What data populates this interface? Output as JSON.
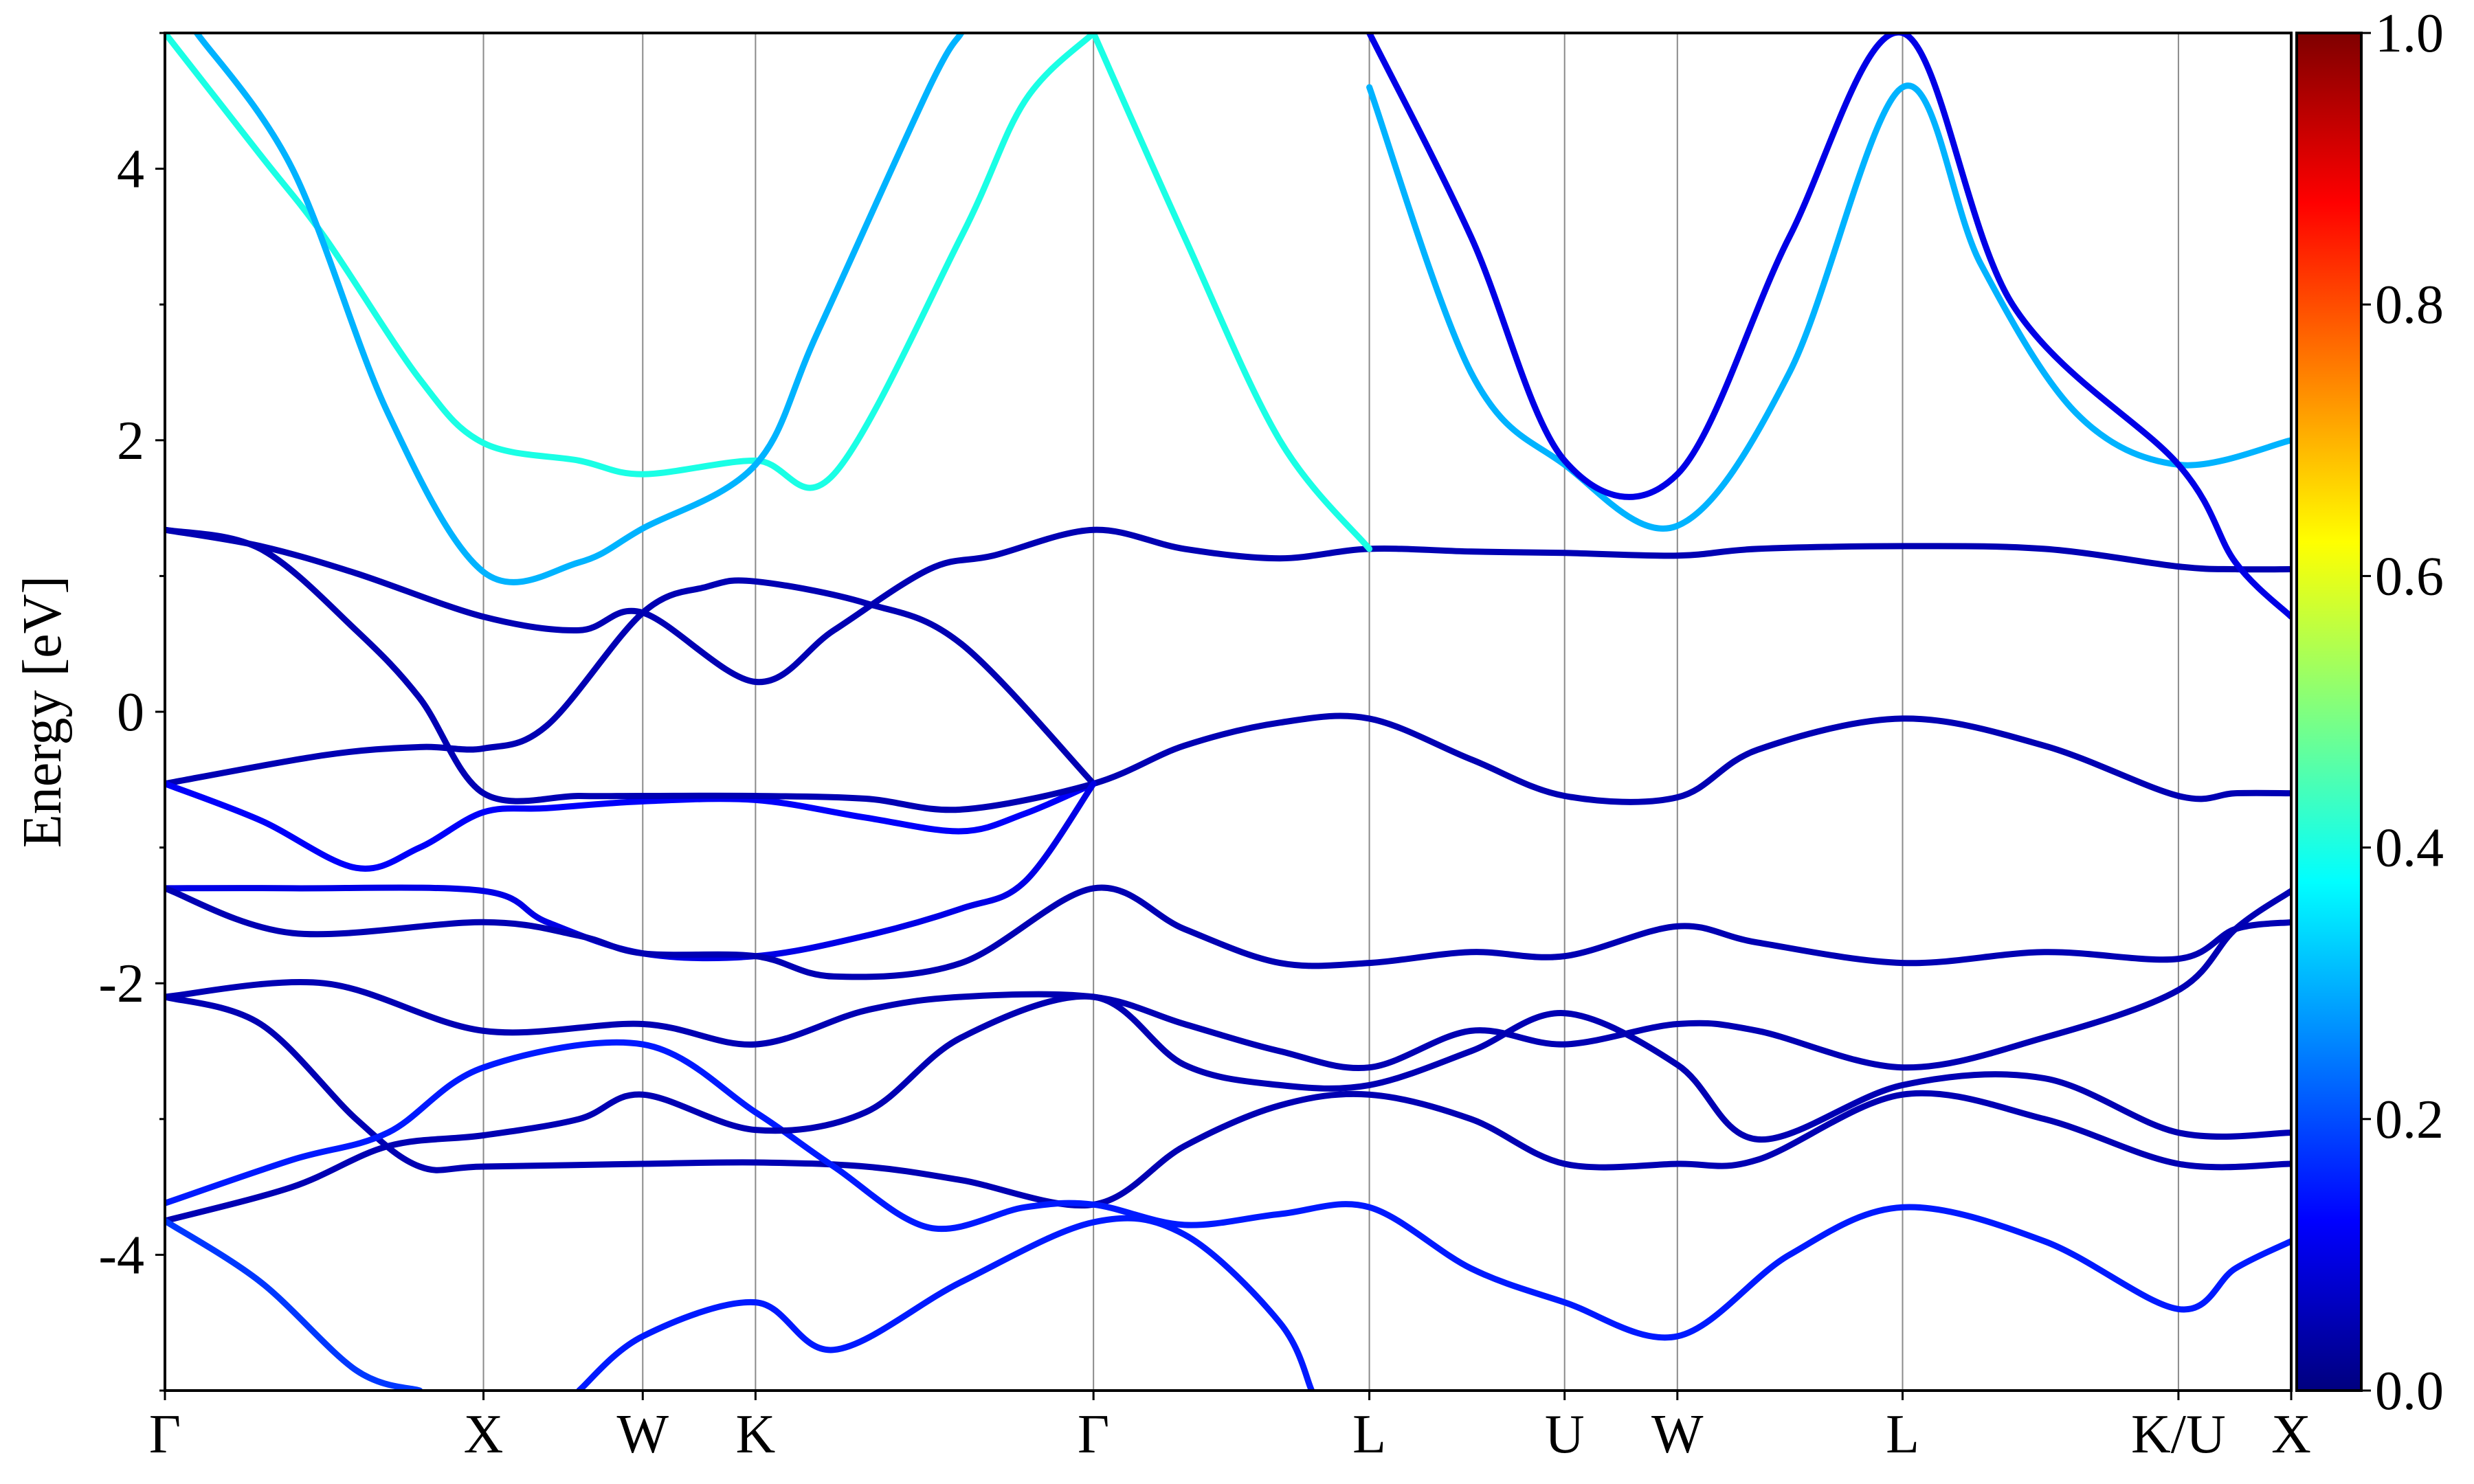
{
  "chart_data": {
    "type": "line",
    "ylabel": "Energy [eV]",
    "ylim": [
      -5,
      5
    ],
    "yticks": [
      -4,
      -2,
      0,
      2,
      4
    ],
    "grid": "vertical lines at high-symmetry points",
    "colormap": "jet",
    "colorbar": {
      "min": 0.0,
      "max": 1.0,
      "ticks": [
        "0.0",
        "0.2",
        "0.4",
        "0.6",
        "0.8",
        "1.0"
      ]
    },
    "kpath": [
      {
        "label": "Γ",
        "k": 0.0
      },
      {
        "label": "X",
        "k": 1.0
      },
      {
        "label": "W",
        "k": 1.5
      },
      {
        "label": "K",
        "k": 1.854
      },
      {
        "label": "Γ",
        "k": 2.915
      },
      {
        "label": "L",
        "k": 3.781
      },
      {
        "label": "U",
        "k": 4.394
      },
      {
        "label": "W",
        "k": 4.748
      },
      {
        "label": "L",
        "k": 5.455
      },
      {
        "label": "K/U",
        "k": 6.321
      },
      {
        "label": "X",
        "k": 6.675
      }
    ],
    "series": [
      {
        "weight": 0.05,
        "points": [
          [
            0,
            -0.53
          ],
          [
            0.5,
            -0.32
          ],
          [
            0.8,
            -0.26
          ],
          [
            1.0,
            -0.27
          ],
          [
            1.2,
            -0.1
          ],
          [
            1.5,
            0.73
          ],
          [
            1.7,
            0.92
          ],
          [
            1.854,
            0.96
          ],
          [
            2.2,
            0.8
          ],
          [
            2.5,
            0.5
          ],
          [
            2.915,
            -0.53
          ]
        ]
      },
      {
        "weight": 0.12,
        "points": [
          [
            0,
            -0.53
          ],
          [
            0.3,
            -0.8
          ],
          [
            0.6,
            -1.15
          ],
          [
            0.8,
            -1.0
          ],
          [
            1.0,
            -0.74
          ],
          [
            1.2,
            -0.71
          ],
          [
            1.5,
            -0.66
          ],
          [
            1.854,
            -0.65
          ],
          [
            2.2,
            -0.78
          ],
          [
            2.5,
            -0.88
          ],
          [
            2.7,
            -0.75
          ],
          [
            2.915,
            -0.53
          ]
        ]
      },
      {
        "weight": 0.05,
        "points": [
          [
            0,
            1.34
          ],
          [
            0.3,
            1.22
          ],
          [
            0.6,
            1.02
          ],
          [
            1.0,
            0.7
          ],
          [
            1.3,
            0.6
          ],
          [
            1.5,
            0.73
          ],
          [
            1.854,
            0.22
          ],
          [
            2.1,
            0.6
          ],
          [
            2.4,
            1.05
          ],
          [
            2.6,
            1.15
          ],
          [
            2.915,
            1.34
          ],
          [
            3.2,
            1.2
          ],
          [
            3.5,
            1.13
          ],
          [
            3.781,
            1.2
          ],
          [
            4.1,
            1.18
          ],
          [
            4.394,
            1.17
          ],
          [
            4.748,
            1.15
          ],
          [
            5.0,
            1.2
          ],
          [
            5.455,
            1.22
          ],
          [
            5.9,
            1.2
          ],
          [
            6.321,
            1.07
          ],
          [
            6.5,
            1.05
          ],
          [
            6.675,
            1.05
          ]
        ]
      },
      {
        "weight": 0.05,
        "points": [
          [
            0,
            1.34
          ],
          [
            0.3,
            1.2
          ],
          [
            0.6,
            0.6
          ],
          [
            0.8,
            0.1
          ],
          [
            1.0,
            -0.6
          ],
          [
            1.3,
            -0.62
          ],
          [
            1.5,
            -0.62
          ],
          [
            1.854,
            -0.62
          ],
          [
            2.2,
            -0.64
          ],
          [
            2.5,
            -0.72
          ],
          [
            2.915,
            -0.53
          ],
          [
            3.2,
            -0.25
          ],
          [
            3.5,
            -0.08
          ],
          [
            3.781,
            -0.05
          ],
          [
            4.1,
            -0.35
          ],
          [
            4.394,
            -0.62
          ],
          [
            4.748,
            -0.63
          ],
          [
            5.0,
            -0.28
          ],
          [
            5.455,
            -0.05
          ],
          [
            5.9,
            -0.25
          ],
          [
            6.321,
            -0.62
          ],
          [
            6.5,
            -0.6
          ],
          [
            6.675,
            -0.6
          ]
        ]
      },
      {
        "weight": 0.1,
        "points": [
          [
            0,
            -1.3
          ],
          [
            0.4,
            -1.3
          ],
          [
            1.0,
            -1.32
          ],
          [
            1.2,
            -1.55
          ],
          [
            1.5,
            -1.78
          ],
          [
            1.854,
            -1.8
          ],
          [
            2.2,
            -1.65
          ],
          [
            2.5,
            -1.45
          ],
          [
            2.7,
            -1.25
          ],
          [
            2.915,
            -0.53
          ]
        ]
      },
      {
        "weight": 0.05,
        "points": [
          [
            0,
            -1.3
          ],
          [
            0.4,
            -1.63
          ],
          [
            1.0,
            -1.55
          ],
          [
            1.3,
            -1.65
          ],
          [
            1.5,
            -1.78
          ],
          [
            1.854,
            -1.8
          ],
          [
            2.1,
            -1.95
          ],
          [
            2.5,
            -1.85
          ],
          [
            2.915,
            -1.3
          ],
          [
            3.2,
            -1.6
          ],
          [
            3.5,
            -1.85
          ],
          [
            3.781,
            -1.85
          ],
          [
            4.1,
            -1.77
          ],
          [
            4.394,
            -1.8
          ],
          [
            4.748,
            -1.58
          ],
          [
            5.0,
            -1.7
          ],
          [
            5.455,
            -1.85
          ],
          [
            5.9,
            -1.77
          ],
          [
            6.321,
            -1.82
          ],
          [
            6.5,
            -1.6
          ],
          [
            6.675,
            -1.55
          ]
        ]
      },
      {
        "weight": 0.05,
        "points": [
          [
            0,
            -2.1
          ],
          [
            0.5,
            -2.0
          ],
          [
            1.0,
            -2.35
          ],
          [
            1.5,
            -2.3
          ],
          [
            1.854,
            -2.45
          ],
          [
            2.2,
            -2.2
          ],
          [
            2.5,
            -2.1
          ],
          [
            2.915,
            -2.1
          ],
          [
            3.2,
            -2.3
          ],
          [
            3.5,
            -2.5
          ],
          [
            3.781,
            -2.62
          ],
          [
            4.1,
            -2.35
          ],
          [
            4.394,
            -2.45
          ],
          [
            4.748,
            -2.3
          ],
          [
            5.0,
            -2.35
          ],
          [
            5.455,
            -2.62
          ],
          [
            5.9,
            -2.4
          ],
          [
            6.321,
            -2.05
          ],
          [
            6.5,
            -1.6
          ],
          [
            6.675,
            -1.32
          ]
        ]
      },
      {
        "weight": 0.05,
        "points": [
          [
            0,
            -2.1
          ],
          [
            0.3,
            -2.3
          ],
          [
            0.6,
            -3.0
          ],
          [
            0.8,
            -3.35
          ],
          [
            1.0,
            -3.35
          ],
          [
            1.5,
            -3.33
          ],
          [
            1.854,
            -3.32
          ],
          [
            2.2,
            -3.35
          ],
          [
            2.5,
            -3.45
          ],
          [
            2.915,
            -3.63
          ],
          [
            3.2,
            -3.2
          ],
          [
            3.5,
            -2.9
          ],
          [
            3.781,
            -2.82
          ],
          [
            4.1,
            -3.0
          ],
          [
            4.394,
            -3.33
          ],
          [
            4.748,
            -3.33
          ],
          [
            5.0,
            -3.3
          ],
          [
            5.455,
            -2.82
          ],
          [
            5.9,
            -3.0
          ],
          [
            6.321,
            -3.33
          ],
          [
            6.675,
            -3.33
          ]
        ]
      },
      {
        "weight": 0.15,
        "points": [
          [
            0,
            -3.62
          ],
          [
            0.4,
            -3.3
          ],
          [
            0.7,
            -3.1
          ],
          [
            1.0,
            -2.62
          ],
          [
            1.5,
            -2.45
          ],
          [
            1.854,
            -2.95
          ],
          [
            2.1,
            -3.35
          ],
          [
            2.4,
            -3.8
          ],
          [
            2.7,
            -3.65
          ],
          [
            2.915,
            -3.63
          ],
          [
            3.2,
            -3.78
          ],
          [
            3.5,
            -3.7
          ],
          [
            3.781,
            -3.65
          ],
          [
            4.1,
            -4.1
          ],
          [
            4.394,
            -4.35
          ],
          [
            4.748,
            -4.6
          ],
          [
            5.1,
            -4.0
          ],
          [
            5.455,
            -3.65
          ],
          [
            5.9,
            -3.9
          ],
          [
            6.321,
            -4.4
          ],
          [
            6.5,
            -4.1
          ],
          [
            6.675,
            -3.9
          ]
        ]
      },
      {
        "weight": 0.05,
        "points": [
          [
            0,
            -3.75
          ],
          [
            0.4,
            -3.5
          ],
          [
            0.7,
            -3.2
          ],
          [
            1.0,
            -3.12
          ],
          [
            1.3,
            -3.0
          ],
          [
            1.5,
            -2.82
          ],
          [
            1.854,
            -3.08
          ],
          [
            2.2,
            -2.95
          ],
          [
            2.5,
            -2.4
          ],
          [
            2.915,
            -2.1
          ],
          [
            3.2,
            -2.6
          ],
          [
            3.5,
            -2.75
          ],
          [
            3.781,
            -2.75
          ],
          [
            4.1,
            -2.5
          ],
          [
            4.394,
            -2.22
          ],
          [
            4.748,
            -2.6
          ],
          [
            5.0,
            -3.15
          ],
          [
            5.455,
            -2.75
          ],
          [
            5.9,
            -2.7
          ],
          [
            6.321,
            -3.1
          ],
          [
            6.675,
            -3.1
          ]
        ]
      },
      {
        "weight": 0.18,
        "points": [
          [
            0,
            -3.75
          ],
          [
            0.3,
            -4.2
          ],
          [
            0.6,
            -4.85
          ],
          [
            0.8,
            -5.0
          ]
        ]
      },
      {
        "weight": 0.15,
        "points": [
          [
            1.3,
            -5.0
          ],
          [
            1.5,
            -4.6
          ],
          [
            1.854,
            -4.35
          ],
          [
            2.1,
            -4.7
          ],
          [
            2.5,
            -4.2
          ],
          [
            2.915,
            -3.76
          ],
          [
            3.2,
            -3.85
          ],
          [
            3.5,
            -4.5
          ],
          [
            3.6,
            -5.0
          ]
        ]
      },
      {
        "weight": 0.4,
        "points": [
          [
            0.0,
            5.0
          ],
          [
            0.3,
            4.1
          ],
          [
            0.5,
            3.5
          ],
          [
            0.8,
            2.45
          ],
          [
            1.0,
            1.98
          ],
          [
            1.3,
            1.85
          ],
          [
            1.5,
            1.75
          ],
          [
            1.854,
            1.85
          ],
          [
            2.1,
            1.75
          ],
          [
            2.5,
            3.5
          ],
          [
            2.7,
            4.5
          ],
          [
            2.915,
            5.0
          ]
        ]
      },
      {
        "weight": 0.3,
        "points": [
          [
            0.1,
            5.0
          ],
          [
            0.4,
            4.0
          ],
          [
            0.7,
            2.2
          ],
          [
            1.0,
            1.03
          ],
          [
            1.3,
            1.1
          ],
          [
            1.5,
            1.35
          ],
          [
            1.854,
            1.82
          ],
          [
            2.05,
            2.8
          ],
          [
            2.4,
            4.6
          ],
          [
            2.5,
            5.0
          ]
        ]
      },
      {
        "weight": 0.4,
        "points": [
          [
            2.915,
            5.0
          ],
          [
            3.2,
            3.5
          ],
          [
            3.5,
            2.0
          ],
          [
            3.781,
            1.2
          ]
        ]
      },
      {
        "weight": 0.3,
        "points": [
          [
            3.781,
            4.6
          ],
          [
            4.1,
            2.5
          ],
          [
            4.394,
            1.82
          ],
          [
            4.748,
            1.37
          ],
          [
            5.1,
            2.5
          ],
          [
            5.455,
            4.6
          ],
          [
            5.7,
            3.3
          ],
          [
            6.0,
            2.2
          ],
          [
            6.321,
            1.82
          ],
          [
            6.675,
            2.0
          ]
        ]
      },
      {
        "weight": 0.1,
        "points": [
          [
            3.781,
            5.0
          ],
          [
            4.1,
            3.5
          ],
          [
            4.394,
            1.85
          ],
          [
            4.748,
            1.75
          ],
          [
            5.1,
            3.5
          ],
          [
            5.455,
            5.0
          ],
          [
            5.8,
            3.0
          ],
          [
            6.321,
            1.82
          ],
          [
            6.5,
            1.1
          ],
          [
            6.675,
            0.7
          ]
        ]
      }
    ]
  }
}
